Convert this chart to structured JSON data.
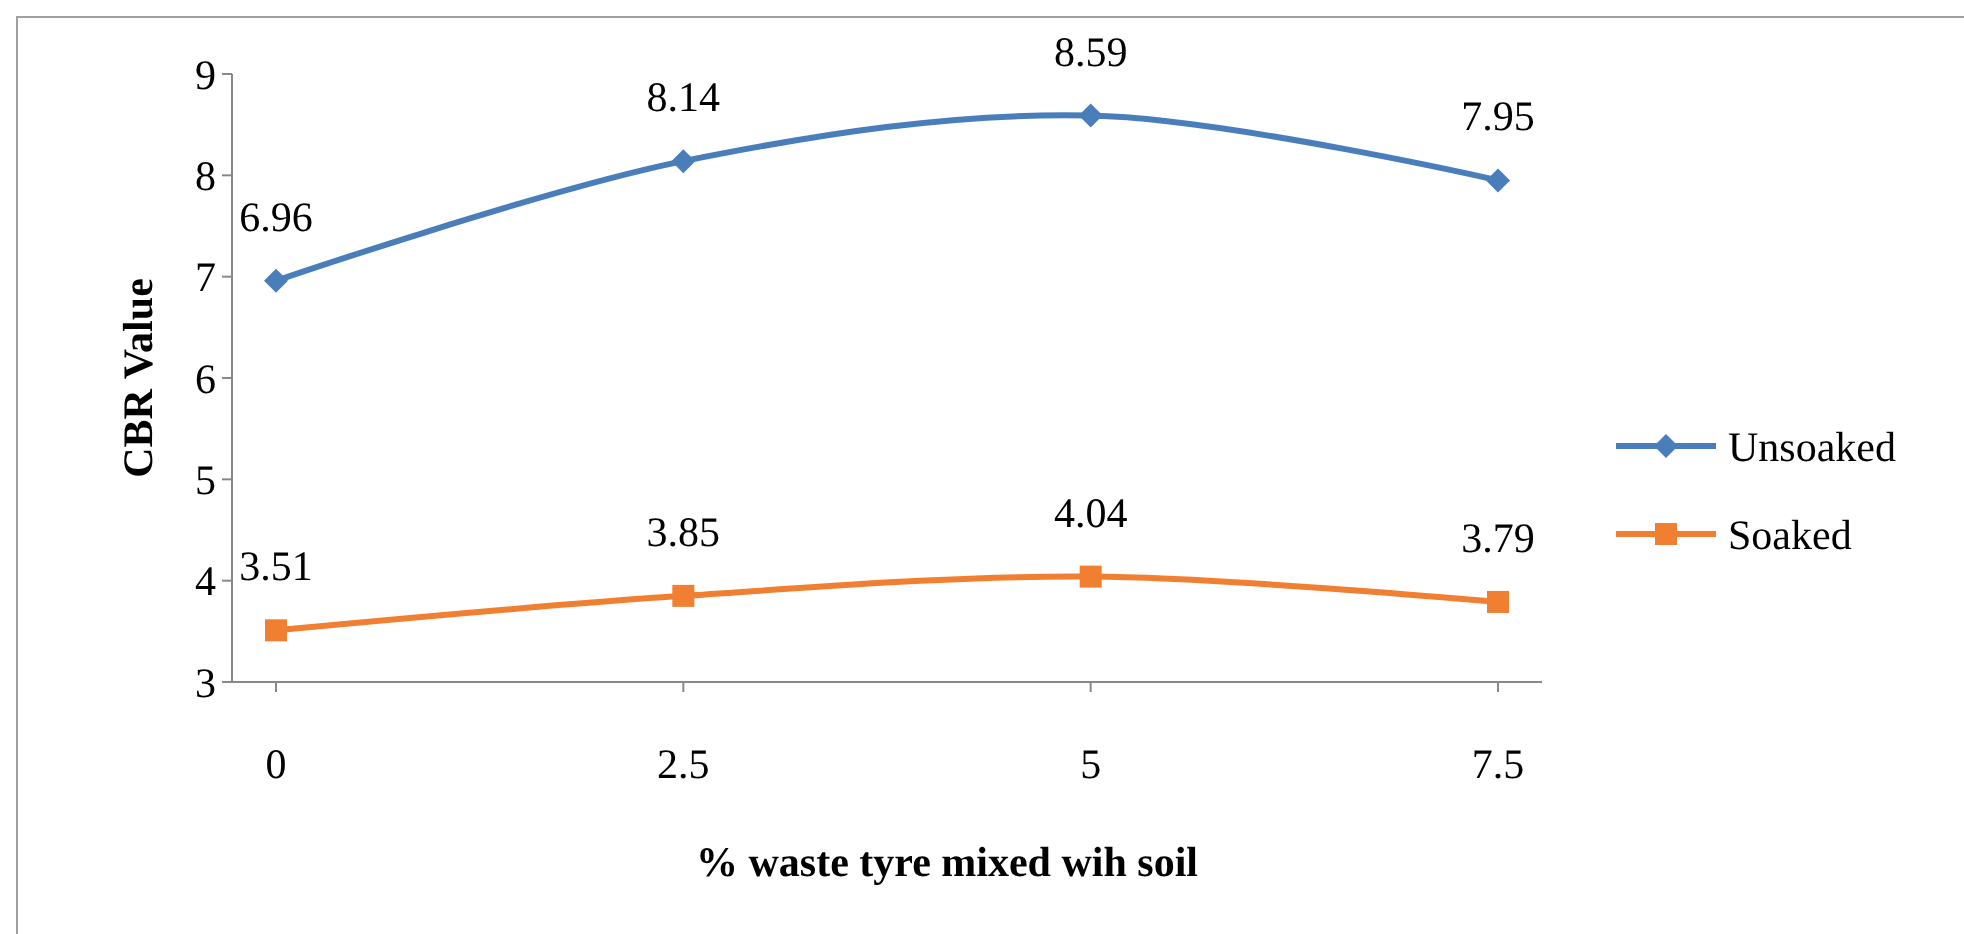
{
  "chart_data": {
    "type": "line",
    "xlabel": "% waste tyre mixed wih soil",
    "ylabel": "CBR Value",
    "categories": [
      "0",
      "2.5",
      "5",
      "7.5"
    ],
    "series": [
      {
        "name": "Unsoaked",
        "color": "#4a7ebb",
        "marker": "diamond",
        "values": [
          6.96,
          8.14,
          8.59,
          7.95
        ]
      },
      {
        "name": "Soaked",
        "color": "#f07f32",
        "marker": "square",
        "values": [
          3.51,
          3.85,
          4.04,
          3.79
        ]
      }
    ],
    "ylim": [
      3,
      9
    ],
    "yticks": [
      3,
      4,
      5,
      6,
      7,
      8,
      9
    ],
    "grid": false,
    "legend": "right",
    "data_labels": true,
    "line_style": "solid"
  }
}
